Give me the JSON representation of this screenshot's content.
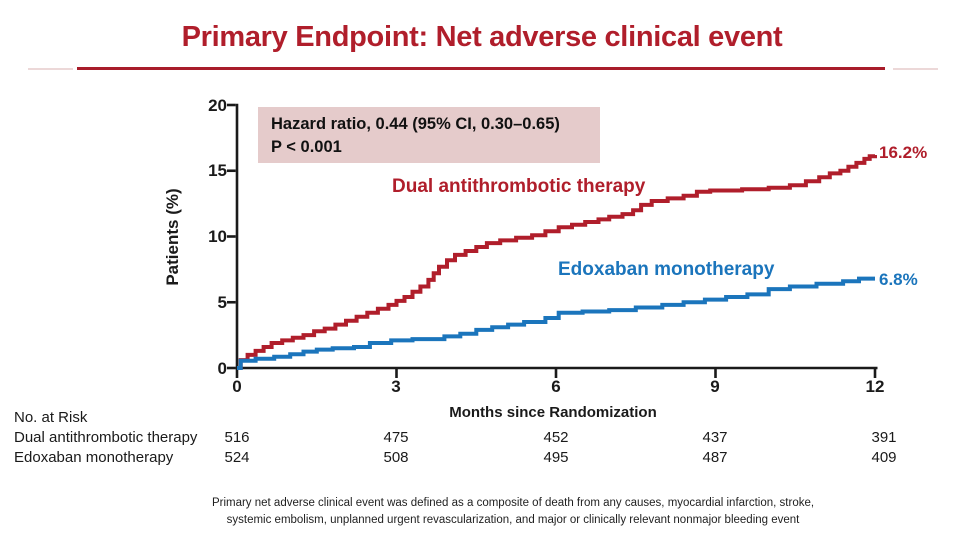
{
  "slide": {
    "title": "Primary Endpoint: Net adverse clinical event",
    "colors": {
      "accent_red": "#b01e2b",
      "accent_blue": "#1b75bc",
      "annotation_bg": "#e5cbcb",
      "pale_rule": "#ecd8d8",
      "axis_black": "#1a1a1a"
    }
  },
  "annotation_box": {
    "line1": "Hazard ratio, 0.44 (95% CI, 0.30–0.65)",
    "line2": "P < 0.001"
  },
  "chart_data": {
    "type": "line",
    "subtype": "kaplan-meier-step",
    "title": "",
    "xlabel": "Months since Randomization",
    "ylabel": "Patients (%)",
    "xlim": [
      0,
      12
    ],
    "ylim": [
      0,
      20
    ],
    "x_ticks": [
      "0",
      "3",
      "6",
      "9",
      "12"
    ],
    "y_ticks": [
      "0",
      "5",
      "10",
      "15",
      "20"
    ],
    "grid": false,
    "legend_position": "inline-labels",
    "series": [
      {
        "name": "Dual antithrombotic therapy",
        "color": "#b01e2b",
        "end_label": "16.2%",
        "final_value": 16.2,
        "points": [
          [
            0,
            0
          ],
          [
            0.07,
            0.6
          ],
          [
            0.2,
            1.0
          ],
          [
            0.35,
            1.3
          ],
          [
            0.5,
            1.6
          ],
          [
            0.65,
            1.9
          ],
          [
            0.85,
            2.1
          ],
          [
            1.05,
            2.3
          ],
          [
            1.25,
            2.5
          ],
          [
            1.45,
            2.8
          ],
          [
            1.65,
            3.0
          ],
          [
            1.85,
            3.3
          ],
          [
            2.05,
            3.6
          ],
          [
            2.25,
            3.9
          ],
          [
            2.45,
            4.2
          ],
          [
            2.65,
            4.5
          ],
          [
            2.85,
            4.8
          ],
          [
            3.0,
            5.1
          ],
          [
            3.15,
            5.4
          ],
          [
            3.3,
            5.8
          ],
          [
            3.45,
            6.2
          ],
          [
            3.6,
            6.7
          ],
          [
            3.7,
            7.2
          ],
          [
            3.8,
            7.7
          ],
          [
            3.95,
            8.2
          ],
          [
            4.1,
            8.6
          ],
          [
            4.3,
            8.9
          ],
          [
            4.5,
            9.2
          ],
          [
            4.7,
            9.5
          ],
          [
            4.95,
            9.7
          ],
          [
            5.25,
            9.9
          ],
          [
            5.55,
            10.1
          ],
          [
            5.8,
            10.4
          ],
          [
            6.05,
            10.7
          ],
          [
            6.3,
            10.9
          ],
          [
            6.55,
            11.1
          ],
          [
            6.8,
            11.3
          ],
          [
            7.0,
            11.5
          ],
          [
            7.25,
            11.7
          ],
          [
            7.45,
            12.0
          ],
          [
            7.6,
            12.4
          ],
          [
            7.8,
            12.7
          ],
          [
            8.1,
            12.9
          ],
          [
            8.4,
            13.1
          ],
          [
            8.65,
            13.4
          ],
          [
            8.9,
            13.5
          ],
          [
            9.5,
            13.6
          ],
          [
            10.0,
            13.7
          ],
          [
            10.4,
            13.9
          ],
          [
            10.7,
            14.2
          ],
          [
            10.95,
            14.5
          ],
          [
            11.15,
            14.8
          ],
          [
            11.35,
            15.0
          ],
          [
            11.5,
            15.3
          ],
          [
            11.65,
            15.6
          ],
          [
            11.8,
            15.9
          ],
          [
            11.9,
            16.1
          ],
          [
            12,
            16.2
          ]
        ]
      },
      {
        "name": "Edoxaban monotherapy",
        "color": "#1b75bc",
        "end_label": "6.8%",
        "final_value": 6.8,
        "points": [
          [
            0,
            0
          ],
          [
            0.07,
            0.55
          ],
          [
            0.35,
            0.7
          ],
          [
            0.7,
            0.85
          ],
          [
            1.0,
            1.05
          ],
          [
            1.25,
            1.25
          ],
          [
            1.5,
            1.4
          ],
          [
            1.8,
            1.5
          ],
          [
            2.2,
            1.6
          ],
          [
            2.5,
            1.9
          ],
          [
            2.9,
            2.1
          ],
          [
            3.3,
            2.2
          ],
          [
            3.9,
            2.4
          ],
          [
            4.2,
            2.6
          ],
          [
            4.5,
            2.9
          ],
          [
            4.8,
            3.1
          ],
          [
            5.1,
            3.3
          ],
          [
            5.4,
            3.5
          ],
          [
            5.8,
            3.8
          ],
          [
            6.05,
            4.2
          ],
          [
            6.5,
            4.3
          ],
          [
            7.0,
            4.4
          ],
          [
            7.5,
            4.6
          ],
          [
            8.0,
            4.8
          ],
          [
            8.4,
            5.0
          ],
          [
            8.8,
            5.2
          ],
          [
            9.2,
            5.4
          ],
          [
            9.6,
            5.6
          ],
          [
            10.0,
            6.0
          ],
          [
            10.4,
            6.2
          ],
          [
            10.9,
            6.4
          ],
          [
            11.4,
            6.6
          ],
          [
            11.7,
            6.8
          ],
          [
            12,
            6.8
          ]
        ]
      }
    ]
  },
  "risk_table": {
    "title": "No. at Risk",
    "rows": [
      {
        "label": "Dual antithrombotic therapy",
        "values": [
          "516",
          "475",
          "452",
          "437",
          "391"
        ]
      },
      {
        "label": "Edoxaban monotherapy",
        "values": [
          "524",
          "508",
          "495",
          "487",
          "409"
        ]
      }
    ]
  },
  "footnote": {
    "line1": "Primary net adverse clinical event was defined as a composite of death from any causes, myocardial infarction, stroke,",
    "line2": "systemic embolism, unplanned urgent revascularization, and major or clinically relevant nonmajor bleeding event"
  }
}
